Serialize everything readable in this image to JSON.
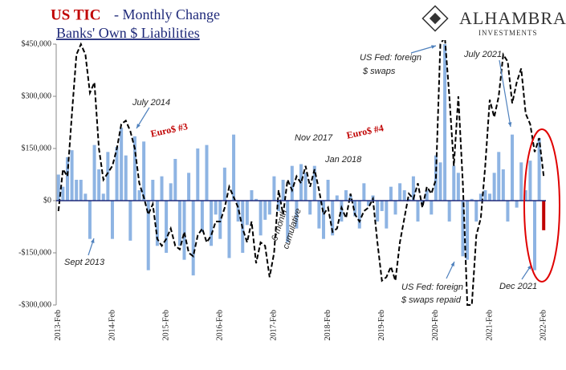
{
  "chart_data": {
    "type": "bar_line",
    "title_parts": [
      "US TIC",
      "- Monthly Change"
    ],
    "subtitle": "Banks' Own $ Liabilities",
    "logo": [
      "ALHAMBRA",
      "INVESTMENTS"
    ],
    "categories": [
      "2013-Feb",
      null,
      null,
      null,
      null,
      null,
      null,
      null,
      null,
      null,
      null,
      null,
      "2014-Feb",
      null,
      null,
      null,
      null,
      null,
      null,
      null,
      null,
      null,
      null,
      null,
      "2015-Feb",
      null,
      null,
      null,
      null,
      null,
      null,
      null,
      null,
      null,
      null,
      null,
      "2016-Feb",
      null,
      null,
      null,
      null,
      null,
      null,
      null,
      null,
      null,
      null,
      null,
      "2017-Feb",
      null,
      null,
      null,
      null,
      null,
      null,
      null,
      null,
      null,
      null,
      null,
      "2018-Feb",
      null,
      null,
      null,
      null,
      null,
      null,
      null,
      null,
      null,
      null,
      null,
      "2019-Feb",
      null,
      null,
      null,
      null,
      null,
      null,
      null,
      null,
      null,
      null,
      null,
      "2020-Feb",
      null,
      null,
      null,
      null,
      null,
      null,
      null,
      null,
      null,
      null,
      null,
      "2021-Feb",
      null,
      null,
      null,
      null,
      null,
      null,
      null,
      null,
      null,
      null,
      null,
      "2022-Feb"
    ],
    "series": [
      {
        "kind": "bar",
        "colors": [
          "#8eb4e3",
          "#8eb4e3",
          "#8eb4e3",
          "#8eb4e3",
          "#8eb4e3",
          "#8eb4e3",
          "#8eb4e3",
          "#8eb4e3",
          "#8eb4e3",
          "#8eb4e3",
          "#8eb4e3",
          "#8eb4e3",
          "#8eb4e3",
          "#8eb4e3",
          "#8eb4e3",
          "#8eb4e3",
          "#8eb4e3",
          "#8eb4e3",
          "#8eb4e3",
          "#8eb4e3",
          "#8eb4e3",
          "#8eb4e3",
          "#8eb4e3",
          "#8eb4e3",
          "#8eb4e3",
          "#8eb4e3",
          "#8eb4e3",
          "#8eb4e3",
          "#8eb4e3",
          "#8eb4e3",
          "#8eb4e3",
          "#8eb4e3",
          "#8eb4e3",
          "#8eb4e3",
          "#8eb4e3",
          "#8eb4e3",
          "#8eb4e3",
          "#8eb4e3",
          "#8eb4e3",
          "#8eb4e3",
          "#8eb4e3",
          "#8eb4e3",
          "#8eb4e3",
          "#8eb4e3",
          "#8eb4e3",
          "#8eb4e3",
          "#8eb4e3",
          "#8eb4e3",
          "#8eb4e3",
          "#8eb4e3",
          "#8eb4e3",
          "#8eb4e3",
          "#8eb4e3",
          "#8eb4e3",
          "#8eb4e3",
          "#8eb4e3",
          "#8eb4e3",
          "#8eb4e3",
          "#8eb4e3",
          "#8eb4e3",
          "#8eb4e3",
          "#8eb4e3",
          "#8eb4e3",
          "#8eb4e3",
          "#8eb4e3",
          "#8eb4e3",
          "#8eb4e3",
          "#8eb4e3",
          "#8eb4e3",
          "#8eb4e3",
          "#8eb4e3",
          "#8eb4e3",
          "#8eb4e3",
          "#8eb4e3",
          "#8eb4e3",
          "#8eb4e3",
          "#8eb4e3",
          "#8eb4e3",
          "#8eb4e3",
          "#8eb4e3",
          "#8eb4e3",
          "#8eb4e3",
          "#8eb4e3",
          "#8eb4e3",
          "#8eb4e3",
          "#8eb4e3",
          "#8eb4e3",
          "#8eb4e3",
          "#8eb4e3",
          "#8eb4e3",
          "#8eb4e3",
          "#8eb4e3",
          "#8eb4e3",
          "#8eb4e3",
          "#8eb4e3",
          "#8eb4e3",
          "#8eb4e3",
          "#8eb4e3",
          "#8eb4e3",
          "#8eb4e3",
          "#8eb4e3",
          "#8eb4e3",
          "#8eb4e3",
          "#8eb4e3",
          "#8eb4e3",
          "#8eb4e3",
          "#8eb4e3",
          "#8eb4e3",
          "#c00000"
        ],
        "values": [
          75000,
          40000,
          125000,
          145000,
          60000,
          60000,
          20000,
          -110000,
          160000,
          90000,
          20000,
          140000,
          -110000,
          155000,
          210000,
          130000,
          -115000,
          185000,
          30000,
          170000,
          -200000,
          60000,
          -130000,
          70000,
          -150000,
          50000,
          120000,
          -130000,
          -170000,
          80000,
          -215000,
          150000,
          -90000,
          160000,
          -130000,
          -40000,
          -110000,
          95000,
          -165000,
          190000,
          -60000,
          -150000,
          -70000,
          30000,
          5000,
          -100000,
          -55000,
          -40000,
          70000,
          -30000,
          60000,
          -120000,
          100000,
          -80000,
          105000,
          80000,
          -40000,
          100000,
          -80000,
          -110000,
          60000,
          -100000,
          15000,
          -60000,
          30000,
          15000,
          -45000,
          -80000,
          50000,
          -15000,
          15000,
          -60000,
          -30000,
          -80000,
          40000,
          -40000,
          50000,
          30000,
          5000,
          70000,
          -60000,
          -10000,
          30000,
          -40000,
          130000,
          110000,
          450000,
          -60000,
          100000,
          80000,
          -160000,
          -170000,
          5000,
          -60000,
          20000,
          30000,
          20000,
          80000,
          140000,
          90000,
          -60000,
          190000,
          -20000,
          110000,
          30000,
          115000,
          -200000,
          180000,
          -85000
        ]
      },
      {
        "kind": "line",
        "color": "#000000",
        "values": [
          -30000,
          90000,
          70000,
          250000,
          420000,
          450000,
          420000,
          310000,
          340000,
          150000,
          60000,
          80000,
          100000,
          150000,
          220000,
          230000,
          200000,
          150000,
          50000,
          10000,
          -40000,
          -10000,
          -110000,
          -130000,
          -110000,
          -80000,
          -130000,
          -140000,
          -90000,
          -150000,
          -160000,
          -100000,
          -80000,
          -120000,
          -100000,
          -60000,
          -60000,
          -20000,
          40000,
          10000,
          -20000,
          -80000,
          -120000,
          -60000,
          -180000,
          -120000,
          -130000,
          -220000,
          -150000,
          30000,
          -40000,
          60000,
          30000,
          70000,
          50000,
          100000,
          40000,
          90000,
          30000,
          -40000,
          -20000,
          -90000,
          -80000,
          -20000,
          -50000,
          20000,
          -40000,
          -60000,
          -30000,
          -20000,
          5000,
          -120000,
          -230000,
          -220000,
          -190000,
          -230000,
          -120000,
          -50000,
          20000,
          5000,
          50000,
          -20000,
          40000,
          20000,
          60000,
          450000,
          470000,
          300000,
          100000,
          300000,
          50000,
          -300000,
          -300000,
          -100000,
          -50000,
          100000,
          290000,
          240000,
          300000,
          420000,
          400000,
          280000,
          340000,
          380000,
          250000,
          220000,
          140000,
          180000,
          70000
        ]
      }
    ],
    "ylim": [
      -300000,
      450000
    ],
    "yticks": [
      {
        "value": -300000,
        "label": "-$300,000"
      },
      {
        "value": -150000,
        "label": "-$150,000"
      },
      {
        "value": 0,
        "label": "$0"
      },
      {
        "value": 150000,
        "label": "$150,000"
      },
      {
        "value": 300000,
        "label": "$300,000"
      },
      {
        "value": 450000,
        "label": "$450,000"
      }
    ],
    "annotations": [
      "July 2014",
      "Euro$ #3",
      "Sept 2013",
      "Nov 2017",
      "Jan 2018",
      "Euro$ #4",
      "6-month",
      "cumulative",
      "US Fed: foreign",
      "$ swaps",
      "US Fed: foreign",
      "$ swaps repaid",
      "July 2021",
      "Dec 2021"
    ]
  }
}
